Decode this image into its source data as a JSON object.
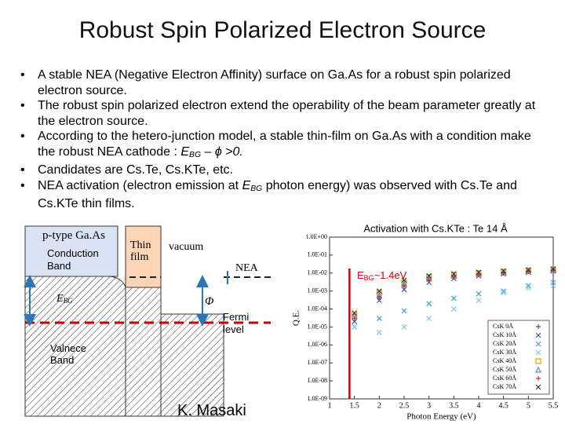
{
  "header": {
    "title": "Robust Spin Polarized Electron Source"
  },
  "bullets": [
    [
      "A stable NEA (Negative Electron Affinity) surface on Ga.As for a robust spin polarized electron source."
    ],
    [
      "The robust spin polarized electron extend the operability of the beam parameter greatly at the electron source."
    ],
    [
      "According to the hetero-junction model, a stable thin-film on Ga.As with a condition make the robust NEA cathode : ",
      "E",
      "BG",
      " – ϕ >0."
    ],
    [
      "Candidates are Cs.Te, Cs.KTe, etc."
    ],
    [
      "NEA activation (electron emission at ",
      "E",
      "BG",
      " photon energy) was observed with Cs.Te and Cs.KTe thin films."
    ]
  ],
  "diagram": {
    "p_type": "p-type Ga.As",
    "conduction": "Conduction Band",
    "thin_film": "Thin film",
    "vacuum": "vacuum",
    "nea": "NEA",
    "ebg": [
      "E",
      "BG"
    ],
    "phi": "Φ",
    "fermi": "Fermi level",
    "valence": "Valnece Band",
    "author": "K. Masaki"
  },
  "plot": {
    "type": "scatter",
    "title": "Activation with Cs.KTe : Te 14 Å",
    "annotation": [
      "E",
      "BG",
      "~1.4eV"
    ],
    "ebg_line": 1.4,
    "xlabel": "Photon Energy (eV)",
    "ylabel": "Q.E.",
    "log_y": true,
    "xlim": [
      1,
      5.5
    ],
    "xticks": [
      1,
      1.5,
      2,
      2.5,
      3,
      3.5,
      4,
      4.5,
      5,
      5.5
    ],
    "ylim": [
      1e-09,
      1
    ],
    "yticks": [
      {
        "value": 1,
        "label": "1.0E+00"
      },
      {
        "value": 0.1,
        "label": "1.0E-01"
      },
      {
        "value": 0.01,
        "label": "1.0E-02"
      },
      {
        "value": 0.001,
        "label": "1.0E-03"
      },
      {
        "value": 0.0001,
        "label": "1.0E-04"
      },
      {
        "value": 1e-05,
        "label": "1.0E-05"
      },
      {
        "value": 1e-06,
        "label": "1.0E-06"
      },
      {
        "value": 1e-07,
        "label": "1.0E-07"
      },
      {
        "value": 1e-08,
        "label": "1.0E-08"
      },
      {
        "value": 1e-09,
        "label": "1.0E-09"
      }
    ],
    "x": [
      1.5,
      2,
      2.5,
      3,
      3.5,
      4,
      4.5,
      5,
      5.5
    ],
    "series": [
      {
        "name": "CsK 0Å",
        "color": "#555555",
        "marker": "plus",
        "values": [
          3e-05,
          0.0005,
          0.002,
          0.004,
          0.006,
          0.008,
          0.01,
          0.012,
          0.015
        ]
      },
      {
        "name": "CsK 10Å",
        "color": "#2a5cc0",
        "marker": "cross",
        "values": [
          2e-05,
          0.0003,
          0.0012,
          0.003,
          0.005,
          0.007,
          0.009,
          0.011,
          0.013
        ]
      },
      {
        "name": "CsK 20Å",
        "color": "#3c9fd6",
        "marker": "cross",
        "values": [
          1e-05,
          3e-05,
          8e-05,
          0.0002,
          0.0004,
          0.0007,
          0.001,
          0.002,
          0.003
        ]
      },
      {
        "name": "CsK 30Å",
        "color": "#7fc8e6",
        "marker": "cross",
        "values": [
          1e-05,
          5e-06,
          1e-05,
          3e-05,
          0.0001,
          0.0003,
          0.0008,
          0.0015,
          0.002
        ]
      },
      {
        "name": "CsK 40Å",
        "color": "#e2a400",
        "marker": "square",
        "values": [
          5e-05,
          0.0008,
          0.003,
          0.006,
          0.008,
          0.01,
          0.012,
          0.014,
          0.016
        ]
      },
      {
        "name": "CsK 50Å",
        "color": "#5a86c8",
        "marker": "triangle",
        "values": [
          4e-05,
          0.0006,
          0.0025,
          0.005,
          0.007,
          0.009,
          0.011,
          0.013,
          0.015
        ]
      },
      {
        "name": "CsK 60Å",
        "color": "#d03030",
        "marker": "plus",
        "values": [
          3e-05,
          0.0004,
          0.0018,
          0.004,
          0.006,
          0.008,
          0.01,
          0.012,
          0.014
        ]
      },
      {
        "name": "CsK 70Å",
        "color": "#333333",
        "marker": "cross",
        "values": [
          6e-05,
          0.001,
          0.004,
          0.007,
          0.009,
          0.011,
          0.013,
          0.015,
          0.017
        ]
      }
    ]
  }
}
